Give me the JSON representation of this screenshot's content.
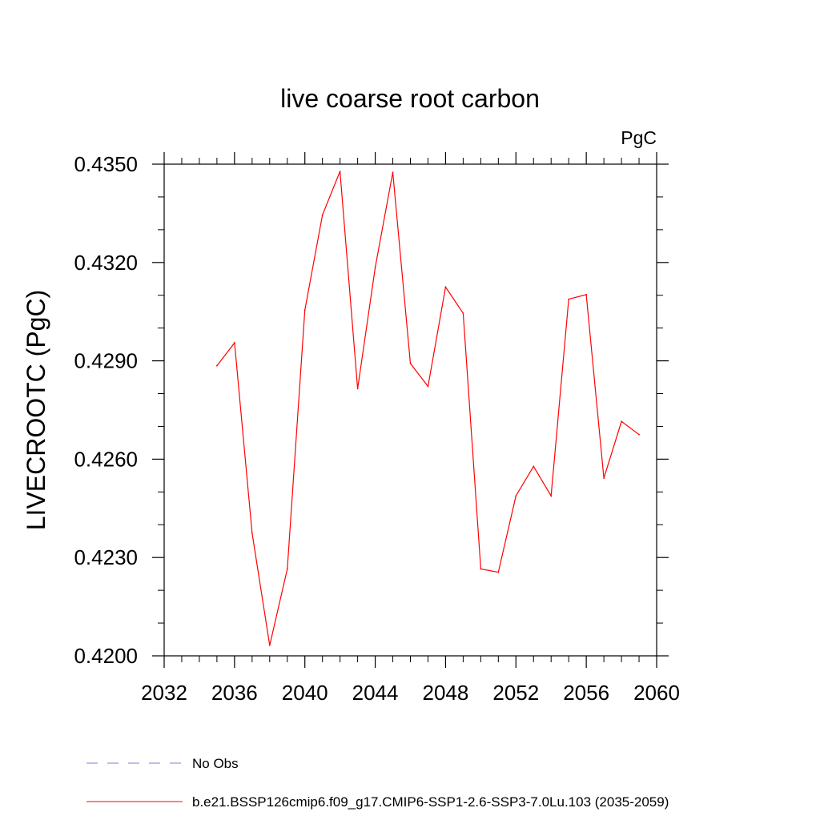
{
  "chart_data": {
    "type": "line",
    "title": "live coarse root carbon",
    "units_label": "PgC",
    "ylabel": "LIVECROOTC  (PgC)",
    "xlabel": "",
    "xlim": [
      2032,
      2060
    ],
    "ylim": [
      0.42,
      0.435
    ],
    "x_ticks": [
      2032,
      2036,
      2040,
      2044,
      2048,
      2052,
      2056,
      2060
    ],
    "x_tick_labels": [
      "2032",
      "2036",
      "2040",
      "2044",
      "2048",
      "2052",
      "2056",
      "2060"
    ],
    "y_ticks": [
      0.42,
      0.423,
      0.426,
      0.429,
      0.432,
      0.435
    ],
    "y_tick_labels": [
      "0.4200",
      "0.4230",
      "0.4260",
      "0.4290",
      "0.4320",
      "0.4350"
    ],
    "x_minor_step": 1,
    "y_minor_step": 0.001,
    "grid": false,
    "series": [
      {
        "name": "b.e21.BSSP126cmip6.f09_g17.CMIP6-SSP1-2.6-SSP3-7.0Lu.103 (2035-2059)",
        "color": "#ff0000",
        "x": [
          2035,
          2036,
          2037,
          2038,
          2039,
          2040,
          2041,
          2042,
          2043,
          2044,
          2045,
          2046,
          2047,
          2048,
          2049,
          2050,
          2051,
          2052,
          2053,
          2054,
          2055,
          2056,
          2057,
          2058,
          2059
        ],
        "values": [
          0.42885,
          0.42955,
          0.42375,
          0.42032,
          0.42265,
          0.43055,
          0.43345,
          0.43478,
          0.42815,
          0.43185,
          0.43475,
          0.42892,
          0.42822,
          0.43125,
          0.43045,
          0.42265,
          0.42255,
          0.42488,
          0.42578,
          0.42488,
          0.43088,
          0.43102,
          0.42542,
          0.42715,
          0.42675
        ]
      }
    ],
    "legend": [
      {
        "label": "No Obs",
        "color": "#7f7fd0",
        "style": "dashed"
      },
      {
        "label": "b.e21.BSSP126cmip6.f09_g17.CMIP6-SSP1-2.6-SSP3-7.0Lu.103 (2035-2059)",
        "color": "#ff0000",
        "style": "solid"
      }
    ],
    "legend_position": "bottom"
  }
}
